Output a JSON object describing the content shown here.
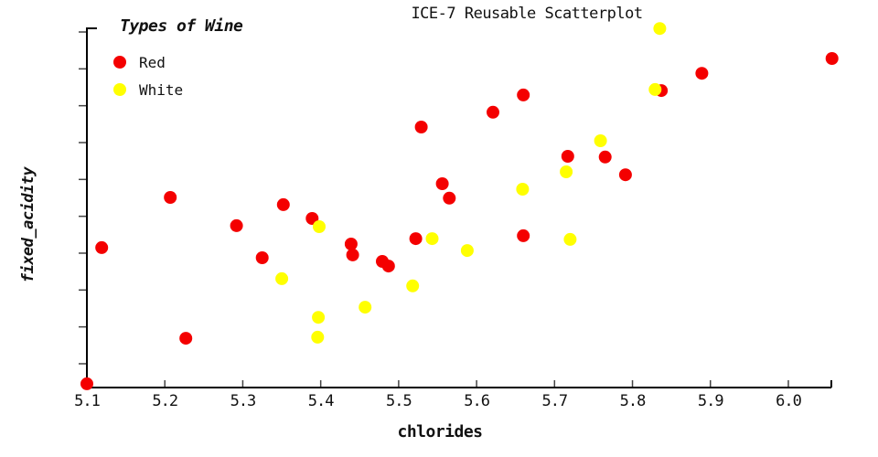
{
  "title": "ICE-7 Reusable Scatterplot",
  "legend": {
    "title": "Types of Wine",
    "items": [
      {
        "label": "Red",
        "color": "#f40000"
      },
      {
        "label": "White",
        "color": "#ffff00"
      }
    ]
  },
  "axes": {
    "x": {
      "label": "chlorides",
      "tick_labels": [
        "5.1",
        "5.2",
        "5.3",
        "5.4",
        "5.5",
        "5.6",
        "5.7",
        "5.8",
        "5.9",
        "6.0"
      ]
    },
    "y": {
      "label": "fixed_acidity",
      "tick_count": 10,
      "tick_labels_visible": false
    }
  },
  "chart_data": {
    "type": "scatter",
    "title": "ICE-7 Reusable Scatterplot",
    "xlabel": "chlorides",
    "ylabel": "fixed_acidity",
    "xlim": [
      5.1,
      6.06
    ],
    "y_units": "fraction of visible y-axis (0 = bottom, 1 = top); y tick marks shown but unlabeled",
    "legend_position": "top-left",
    "grid": false,
    "point_radius_px": 7,
    "series": [
      {
        "name": "Red",
        "color": "#f40000",
        "points": [
          [
            5.1,
            0.013
          ],
          [
            5.119,
            0.39
          ],
          [
            5.207,
            0.529
          ],
          [
            5.227,
            0.139
          ],
          [
            5.292,
            0.451
          ],
          [
            5.325,
            0.362
          ],
          [
            5.352,
            0.509
          ],
          [
            5.389,
            0.471
          ],
          [
            5.439,
            0.4
          ],
          [
            5.441,
            0.37
          ],
          [
            5.479,
            0.352
          ],
          [
            5.487,
            0.339
          ],
          [
            5.522,
            0.415
          ],
          [
            5.529,
            0.724
          ],
          [
            5.556,
            0.567
          ],
          [
            5.565,
            0.527
          ],
          [
            5.621,
            0.765
          ],
          [
            5.66,
            0.813
          ],
          [
            5.66,
            0.423
          ],
          [
            5.717,
            0.643
          ],
          [
            5.765,
            0.641
          ],
          [
            5.791,
            0.592
          ],
          [
            5.837,
            0.825
          ],
          [
            5.889,
            0.873
          ],
          [
            6.056,
            0.914
          ]
        ]
      },
      {
        "name": "White",
        "color": "#ffff00",
        "points": [
          [
            5.35,
            0.304
          ],
          [
            5.396,
            0.142
          ],
          [
            5.397,
            0.197
          ],
          [
            5.398,
            0.448
          ],
          [
            5.457,
            0.225
          ],
          [
            5.518,
            0.284
          ],
          [
            5.543,
            0.415
          ],
          [
            5.588,
            0.382
          ],
          [
            5.659,
            0.552
          ],
          [
            5.715,
            0.6
          ],
          [
            5.72,
            0.413
          ],
          [
            5.759,
            0.686
          ],
          [
            5.829,
            0.828
          ],
          [
            5.835,
            0.997
          ]
        ]
      }
    ]
  }
}
